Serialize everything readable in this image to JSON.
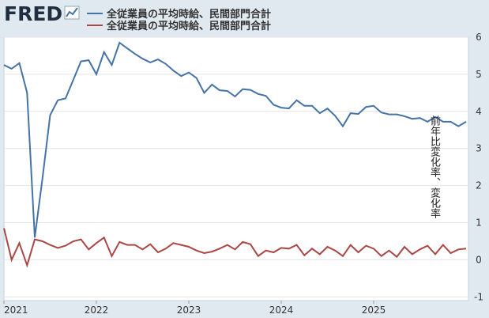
{
  "chart_data": {
    "type": "line",
    "logo": "FRED",
    "y_label": "前年比変化率、変化率",
    "x": [
      "2021-01",
      "2021-02",
      "2021-03",
      "2021-04",
      "2021-05",
      "2021-06",
      "2021-07",
      "2021-08",
      "2021-09",
      "2021-10",
      "2021-11",
      "2021-12",
      "2022-01",
      "2022-02",
      "2022-03",
      "2022-04",
      "2022-05",
      "2022-06",
      "2022-07",
      "2022-08",
      "2022-09",
      "2022-10",
      "2022-11",
      "2022-12",
      "2023-01",
      "2023-02",
      "2023-03",
      "2023-04",
      "2023-05",
      "2023-06",
      "2023-07",
      "2023-08",
      "2023-09",
      "2023-10",
      "2023-11",
      "2023-12",
      "2024-01",
      "2024-02",
      "2024-03",
      "2024-04",
      "2024-05",
      "2024-06",
      "2024-07",
      "2024-08",
      "2024-09",
      "2024-10",
      "2024-11",
      "2024-12",
      "2025-01",
      "2025-02",
      "2025-03",
      "2025-04",
      "2025-05",
      "2025-06",
      "2025-07",
      "2025-08",
      "2025-09",
      "2025-10",
      "2025-11",
      "2025-12",
      "2026-01"
    ],
    "series": [
      {
        "name": "全従業員の平均時給、民間部門合計",
        "color": "#4572a7",
        "values": [
          5.25,
          5.15,
          5.3,
          4.5,
          0.6,
          2.2,
          3.9,
          4.3,
          4.35,
          4.85,
          5.35,
          5.38,
          5.0,
          5.6,
          5.25,
          5.85,
          5.7,
          5.55,
          5.42,
          5.32,
          5.4,
          5.28,
          5.1,
          4.95,
          5.05,
          4.9,
          4.5,
          4.72,
          4.57,
          4.55,
          4.4,
          4.6,
          4.58,
          4.47,
          4.42,
          4.18,
          4.1,
          4.08,
          4.3,
          4.15,
          4.15,
          3.95,
          4.08,
          3.88,
          3.6,
          3.95,
          3.93,
          4.12,
          4.15,
          3.97,
          3.92,
          3.92,
          3.87,
          3.8,
          3.82,
          3.72,
          3.85,
          3.72,
          3.72,
          3.6,
          3.72
        ]
      },
      {
        "name": "全従業員の平均時給、民間部門合計",
        "color": "#aa4643",
        "values": [
          0.85,
          0.0,
          0.45,
          -0.15,
          0.55,
          0.5,
          0.4,
          0.32,
          0.38,
          0.5,
          0.55,
          0.28,
          0.45,
          0.6,
          0.1,
          0.48,
          0.4,
          0.4,
          0.28,
          0.42,
          0.2,
          0.3,
          0.45,
          0.4,
          0.35,
          0.25,
          0.18,
          0.22,
          0.3,
          0.4,
          0.28,
          0.48,
          0.42,
          0.1,
          0.25,
          0.2,
          0.32,
          0.3,
          0.4,
          0.12,
          0.3,
          0.15,
          0.35,
          0.25,
          0.1,
          0.4,
          0.2,
          0.38,
          0.3,
          0.1,
          0.25,
          0.08,
          0.35,
          0.15,
          0.28,
          0.38,
          0.15,
          0.4,
          0.18,
          0.28,
          0.3
        ]
      }
    ],
    "xlim": [
      "2021-01",
      "2026-01"
    ],
    "xticks": [
      {
        "value": "2021-01",
        "label": "2021"
      },
      {
        "value": "2022-01",
        "label": "2022"
      },
      {
        "value": "2023-01",
        "label": "2023"
      },
      {
        "value": "2024-01",
        "label": "2024"
      },
      {
        "value": "2025-01",
        "label": "2025"
      }
    ],
    "ylim": [
      -1.1,
      6
    ],
    "yticks": [
      -1,
      0,
      1,
      2,
      3,
      4,
      5,
      6
    ],
    "grid": true
  }
}
